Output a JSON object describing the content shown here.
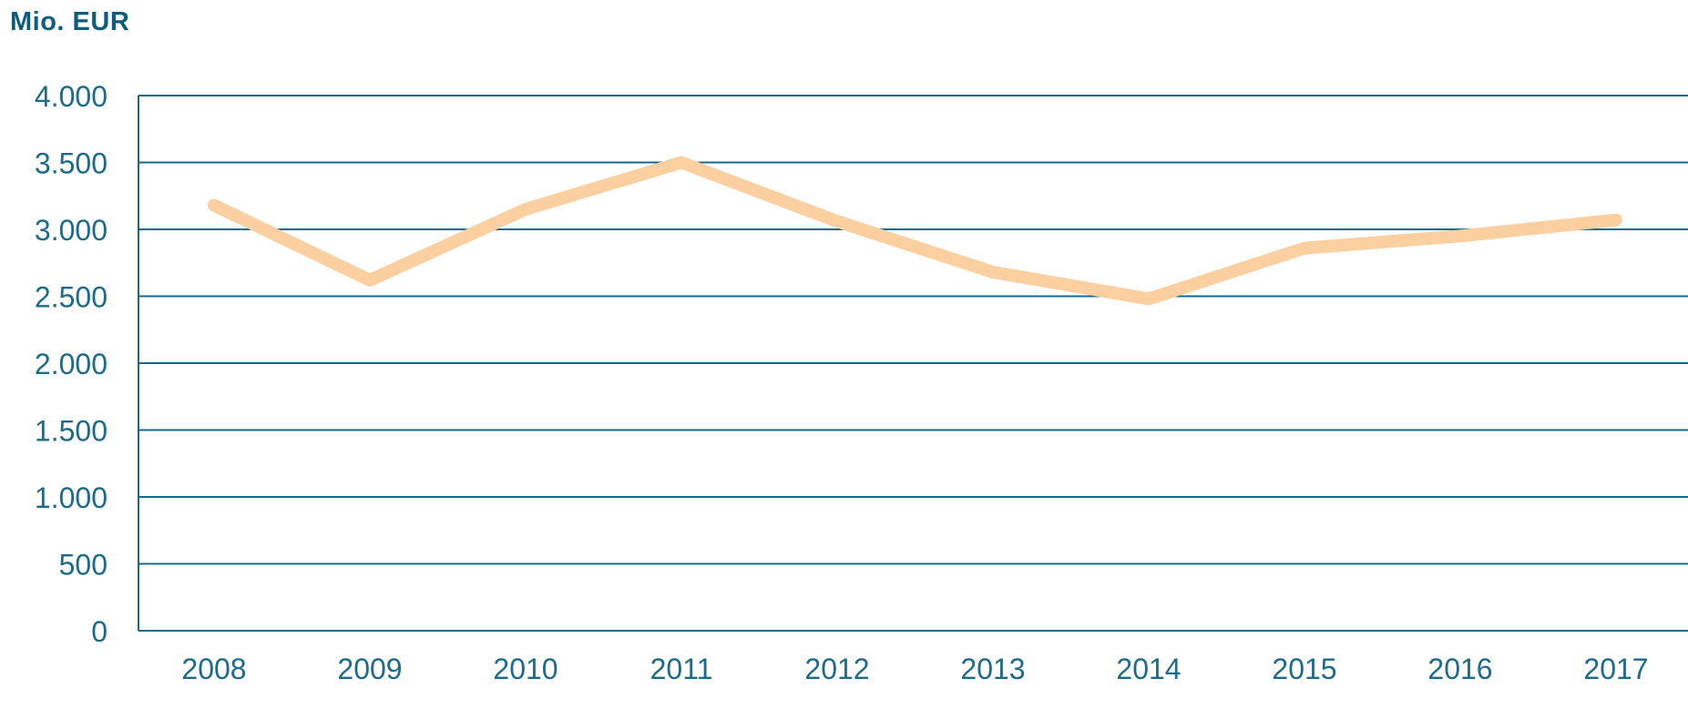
{
  "title": "Mio. EUR",
  "colors": {
    "title": "#0e5d7d",
    "labels": "#1d6b8b",
    "grid": "#17698c",
    "line": "#fbcfa0"
  },
  "chart_data": {
    "type": "line",
    "title": "Mio. EUR",
    "xlabel": "",
    "ylabel": "Mio. EUR",
    "x": [
      "2008",
      "2009",
      "2010",
      "2011",
      "2012",
      "2013",
      "2014",
      "2015",
      "2016",
      "2017"
    ],
    "values": [
      3180,
      2620,
      3150,
      3500,
      3060,
      2680,
      2480,
      2860,
      2950,
      3070
    ],
    "ylim": [
      0,
      4000
    ],
    "ytick_interval": 500,
    "yticks": [
      {
        "value": 0,
        "label": "0"
      },
      {
        "value": 500,
        "label": "500"
      },
      {
        "value": 1000,
        "label": "1.000"
      },
      {
        "value": 1500,
        "label": "1.500"
      },
      {
        "value": 2000,
        "label": "2.000"
      },
      {
        "value": 2500,
        "label": "2.500"
      },
      {
        "value": 3000,
        "label": "3.000"
      },
      {
        "value": 3500,
        "label": "3.500"
      },
      {
        "value": 4000,
        "label": "4.000"
      }
    ],
    "grid": "horizontal",
    "legend": "none",
    "line_color": "#fbcfa0",
    "axis_color": "#17698c",
    "label_color": "#1d6b8b",
    "title_color": "#0e5d7d"
  }
}
